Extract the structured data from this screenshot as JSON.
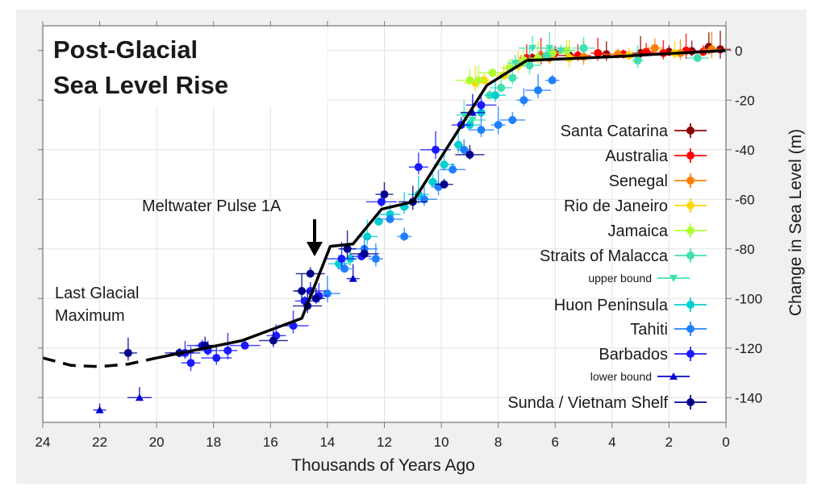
{
  "chart_data": {
    "type": "scatter",
    "title": [
      "Post-Glacial",
      "Sea Level Rise"
    ],
    "xlabel": "Thousands of Years Ago",
    "ylabel": "Change in Sea Level (m)",
    "xlim": [
      24,
      0
    ],
    "ylim": [
      -150,
      10
    ],
    "x_ticks": [
      24,
      22,
      20,
      18,
      16,
      14,
      12,
      10,
      8,
      6,
      4,
      2,
      0
    ],
    "y_ticks": [
      0,
      -20,
      -40,
      -60,
      -80,
      -100,
      -120,
      -140
    ],
    "grid": true,
    "legend_placement": "right",
    "annotations": [
      {
        "text": "Meltwater Pulse 1A",
        "x": 14.5,
        "y": -76,
        "arrow": true
      },
      {
        "text": "Last Glacial",
        "x": 23.1,
        "y": -101
      },
      {
        "text": "Maximum",
        "x": 23.1,
        "y": -109
      }
    ],
    "trend_line": {
      "name": "sea level curve",
      "color": "#000000",
      "dashed_segment": {
        "x": [
          24,
          23,
          22,
          21,
          20
        ],
        "y": [
          -124,
          -127,
          -127.5,
          -126.5,
          -124
        ]
      },
      "solid_segment": {
        "x": [
          20,
          17,
          14.9,
          13.9,
          13.1,
          12.1,
          11.0,
          8.4,
          7.0,
          4,
          2,
          0
        ],
        "y": [
          -124,
          -117,
          -108,
          -79,
          -78,
          -64,
          -61,
          -14,
          -4,
          -2.5,
          -1.2,
          0
        ]
      }
    },
    "series": [
      {
        "name": "Santa Catarina",
        "color": "#8b0000",
        "marker": "circle",
        "x": [
          6.8,
          5.5,
          4.2,
          3.0,
          2.0,
          1.2,
          0.6,
          0.2
        ],
        "y": [
          -3,
          -2,
          -1.5,
          -1,
          -0.5,
          -0.2,
          1.5,
          0.5
        ]
      },
      {
        "name": "Australia",
        "color": "#ff0000",
        "marker": "circle",
        "x": [
          7.0,
          6.5,
          6.0,
          5.2,
          4.5,
          3.6,
          2.8,
          2.2,
          1.4,
          0.8
        ],
        "y": [
          -3,
          -2,
          -1,
          -2,
          -1,
          -1.5,
          -0.5,
          -1,
          0,
          -0.5
        ]
      },
      {
        "name": "Senegal",
        "color": "#ff7f00",
        "marker": "circle",
        "x": [
          7.2,
          6.2,
          5.0,
          3.8,
          2.5,
          1.6,
          0.5
        ],
        "y": [
          -5,
          -3,
          -2.5,
          -1.5,
          1,
          -1,
          0.5
        ]
      },
      {
        "name": "Rio de Janeiro",
        "color": "#ffd700",
        "marker": "circle",
        "x": [
          8.8,
          8.5,
          7.8,
          7.3,
          5.5,
          3.4,
          1.8
        ],
        "y": [
          -13,
          -12,
          -10,
          -6,
          -3,
          -2,
          -1
        ]
      },
      {
        "name": "Jamaica",
        "color": "#adff2f",
        "marker": "circle",
        "x": [
          9.0,
          8.7,
          8.2,
          7.6,
          7.1,
          6.6,
          6.1,
          5.6
        ],
        "y": [
          -12,
          -12,
          -9,
          -7,
          -4,
          -3,
          -1,
          0
        ]
      },
      {
        "name": "Straits of Malacca",
        "color": "#40e0b0",
        "marker": "circle",
        "x": [
          8.3,
          7.9,
          7.5,
          6.9,
          6.3,
          5.0,
          3.1,
          1.0
        ],
        "y": [
          -18,
          -15,
          -11,
          -6,
          -2,
          1,
          -4,
          -3
        ]
      },
      {
        "name": "upper bound",
        "color": "#40e0b0",
        "marker": "triangle-down",
        "x": [
          9.2,
          8.9,
          7.4,
          6.8,
          6.2,
          5.8
        ],
        "y": [
          -26,
          -28,
          -5,
          1,
          1,
          0
        ]
      },
      {
        "name": "Huon Peninsula",
        "color": "#00ced1",
        "marker": "circle",
        "x": [
          13.6,
          13.2,
          12.6,
          12.2,
          11.8,
          11.3,
          10.8,
          10.3,
          9.9,
          9.4,
          9.0,
          8.6,
          8.1
        ],
        "y": [
          -86,
          -84,
          -75,
          -69,
          -66,
          -63,
          -58,
          -53,
          -46,
          -38,
          -30,
          -25,
          -18
        ]
      },
      {
        "name": "Tahiti",
        "color": "#1e7fff",
        "marker": "circle",
        "x": [
          14.0,
          13.4,
          12.7,
          12.3,
          11.8,
          11.3,
          10.6,
          10.1,
          9.6,
          9.2,
          8.6,
          8.0,
          7.5,
          7.1,
          6.6,
          6.1
        ],
        "y": [
          -98,
          -88,
          -80,
          -84,
          -68,
          -75,
          -60,
          -55,
          -48,
          -40,
          -32,
          -30,
          -28,
          -20,
          -16,
          -12
        ]
      },
      {
        "name": "Barbados",
        "color": "#1a1aff",
        "marker": "circle",
        "x": [
          19.0,
          18.8,
          18.4,
          18.2,
          17.9,
          17.5,
          16.9,
          15.8,
          15.2,
          14.8,
          14.6,
          14.3,
          13.5,
          12.8,
          12.1,
          10.8,
          10.2,
          9.3,
          8.6
        ],
        "y": [
          -122,
          -126,
          -119,
          -121,
          -124,
          -121,
          -119,
          -115,
          -111,
          -101,
          -97,
          -99,
          -84,
          -83,
          -61,
          -47,
          -40,
          -30,
          -22
        ]
      },
      {
        "name": "lower bound",
        "color": "#0000cd",
        "marker": "triangle-up",
        "x": [
          22.0,
          20.6,
          13.1,
          8.9
        ],
        "y": [
          -145,
          -140,
          -92,
          -25
        ]
      },
      {
        "name": "Sunda / Vietnam Shelf",
        "color": "#00008b",
        "marker": "circle",
        "x": [
          21.0,
          19.2,
          18.3,
          15.9,
          14.9,
          14.6,
          14.4,
          14.7,
          13.3,
          12.7,
          12.0,
          11.0,
          9.9,
          9.0
        ],
        "y": [
          -122,
          -122,
          -119,
          -117,
          -97,
          -90,
          -100,
          -103,
          -80,
          -82,
          -58,
          -61,
          -54,
          -42
        ]
      }
    ]
  }
}
